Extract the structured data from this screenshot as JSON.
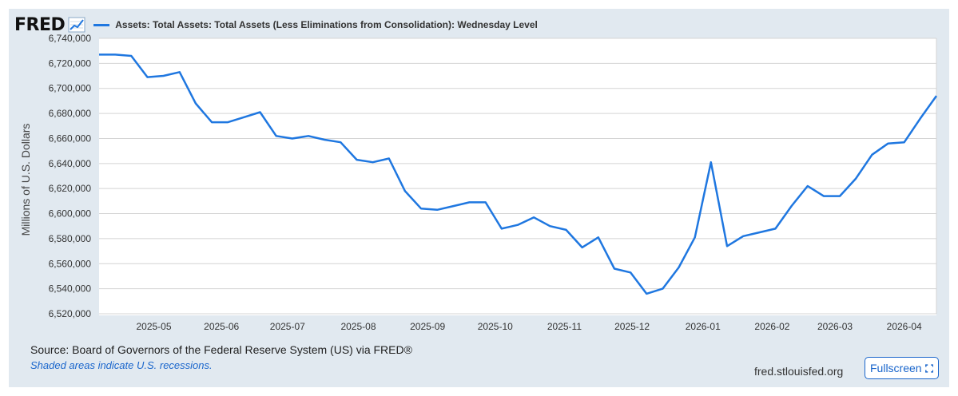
{
  "logo": {
    "text": "FRED"
  },
  "legend": {
    "label": "Assets: Total Assets: Total Assets (Less Eliminations from Consolidation): Wednesday Level",
    "color": "#1f77e0"
  },
  "footer": {
    "source": "Source: Board of Governors of the Federal Reserve System (US) via FRED®",
    "recession_note": "Shaded areas indicate U.S. recessions.",
    "site": "fred.stlouisfed.org",
    "fullscreen_label": "Fullscreen"
  },
  "chart_data": {
    "type": "line",
    "title": "Assets: Total Assets: Total Assets (Less Eliminations from Consolidation): Wednesday Level",
    "ylabel": "Millions of U.S. Dollars",
    "xlabel": "",
    "ylim": [
      6520000,
      6740000
    ],
    "yticks": [
      6520000,
      6540000,
      6560000,
      6580000,
      6600000,
      6620000,
      6640000,
      6660000,
      6680000,
      6700000,
      6720000,
      6740000
    ],
    "ytick_labels": [
      "6,520,000",
      "6,540,000",
      "6,560,000",
      "6,580,000",
      "6,600,000",
      "6,620,000",
      "6,640,000",
      "6,660,000",
      "6,680,000",
      "6,700,000",
      "6,720,000",
      "6,740,000"
    ],
    "xlim_weeks": [
      0,
      52
    ],
    "xticks": [
      {
        "week": 3.4,
        "label": "2025-05"
      },
      {
        "week": 7.6,
        "label": "2025-06"
      },
      {
        "week": 11.7,
        "label": "2025-07"
      },
      {
        "week": 16.1,
        "label": "2025-08"
      },
      {
        "week": 20.4,
        "label": "2025-09"
      },
      {
        "week": 24.6,
        "label": "2025-10"
      },
      {
        "week": 28.9,
        "label": "2025-11"
      },
      {
        "week": 33.1,
        "label": "2025-12"
      },
      {
        "week": 37.5,
        "label": "2026-01"
      },
      {
        "week": 41.8,
        "label": "2026-02"
      },
      {
        "week": 45.7,
        "label": "2026-03"
      },
      {
        "week": 50.0,
        "label": "2026-04"
      }
    ],
    "grid": true,
    "series": [
      {
        "name": "Assets: Total Assets: Total Assets (Less Eliminations from Consolidation): Wednesday Level",
        "color": "#1f77e0",
        "x": [
          0,
          1,
          2,
          3,
          4,
          5,
          6,
          7,
          8,
          9,
          10,
          11,
          12,
          13,
          14,
          15,
          16,
          17,
          18,
          19,
          20,
          21,
          22,
          23,
          24,
          25,
          26,
          27,
          28,
          29,
          30,
          31,
          32,
          33,
          34,
          35,
          36,
          37,
          38,
          39,
          40,
          41,
          42,
          43,
          44,
          45,
          46,
          47,
          48,
          49,
          50,
          51,
          52
        ],
        "values": [
          6727000,
          6727000,
          6726000,
          6709000,
          6710000,
          6713000,
          6688000,
          6673000,
          6673000,
          6677000,
          6681000,
          6662000,
          6660000,
          6662000,
          6659000,
          6657000,
          6643000,
          6641000,
          6644000,
          6618000,
          6604000,
          6603000,
          6606000,
          6609000,
          6609000,
          6588000,
          6591000,
          6597000,
          6590000,
          6587000,
          6573000,
          6581000,
          6556000,
          6553000,
          6536000,
          6540000,
          6557000,
          6581000,
          6641000,
          6574000,
          6582000,
          6585000,
          6588000,
          6606000,
          6622000,
          6614000,
          6614000,
          6628000,
          6647000,
          6656000,
          6657000,
          6676000,
          6694000
        ]
      }
    ]
  }
}
